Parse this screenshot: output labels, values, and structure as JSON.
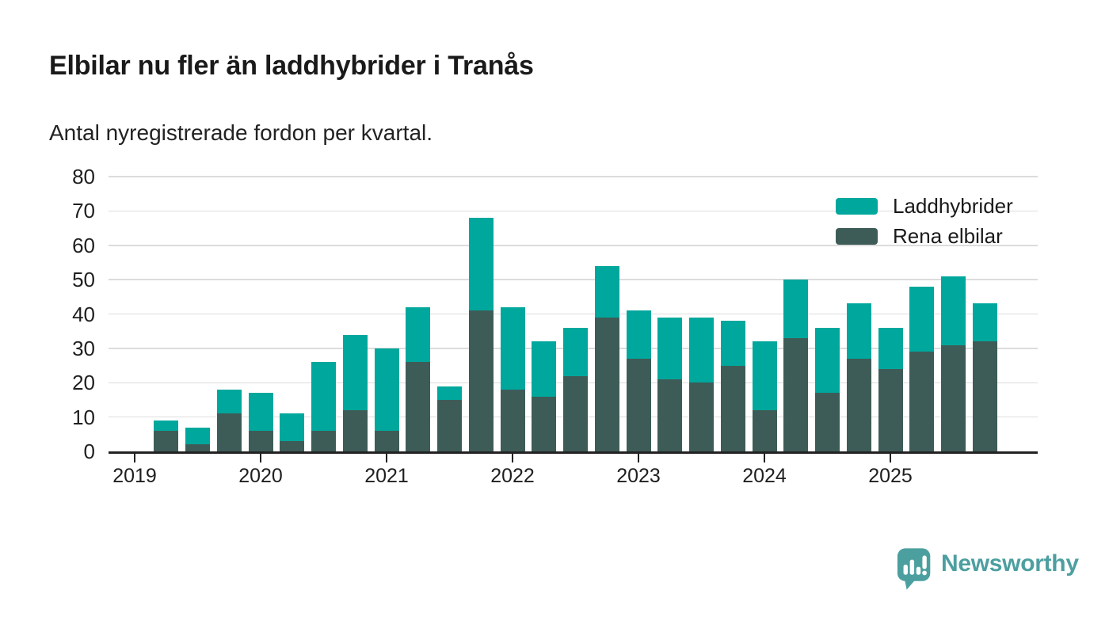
{
  "header": {
    "title": "Elbilar nu fler än laddhybrider i Tranås",
    "subtitle": "Antal nyregistrerade fordon per kvartal."
  },
  "chart_data": {
    "type": "bar",
    "stacked": true,
    "title": "Elbilar nu fler än laddhybrider i Tranås",
    "subtitle": "Antal nyregistrerade fordon per kvartal.",
    "xlabel": "",
    "ylabel": "",
    "ylim": [
      0,
      80
    ],
    "y_ticks": [
      0,
      10,
      20,
      30,
      40,
      50,
      60,
      70,
      80
    ],
    "grid": true,
    "legend_position": "top-right",
    "x_year_labels": [
      "2019",
      "2020",
      "2021",
      "2022",
      "2023",
      "2024",
      "2025"
    ],
    "categories": [
      "2019 Q1",
      "2019 Q2",
      "2019 Q3",
      "2019 Q4",
      "2020 Q1",
      "2020 Q2",
      "2020 Q3",
      "2020 Q4",
      "2021 Q1",
      "2021 Q2",
      "2021 Q3",
      "2021 Q4",
      "2022 Q1",
      "2022 Q2",
      "2022 Q3",
      "2022 Q4",
      "2023 Q1",
      "2023 Q2",
      "2023 Q3",
      "2023 Q4",
      "2024 Q1",
      "2024 Q2",
      "2024 Q3",
      "2024 Q4",
      "2025 Q1",
      "2025 Q2",
      "2025 Q3",
      "2025 Q4"
    ],
    "series": [
      {
        "name": "Laddhybrider",
        "color": "#00a79c",
        "stack_position": "top",
        "values": [
          0,
          3,
          5,
          7,
          11,
          8,
          20,
          22,
          24,
          16,
          4,
          27,
          24,
          16,
          14,
          15,
          14,
          18,
          19,
          13,
          20,
          17,
          19,
          16,
          12,
          19,
          20,
          11
        ]
      },
      {
        "name": "Rena elbilar",
        "color": "#3e5c57",
        "stack_position": "bottom",
        "values": [
          0,
          6,
          2,
          11,
          6,
          3,
          6,
          12,
          6,
          26,
          15,
          41,
          18,
          16,
          22,
          39,
          27,
          21,
          20,
          25,
          12,
          33,
          17,
          27,
          24,
          29,
          31,
          32
        ]
      }
    ],
    "totals": [
      0,
      9,
      7,
      18,
      17,
      11,
      26,
      34,
      30,
      42,
      19,
      68,
      42,
      32,
      36,
      54,
      41,
      39,
      39,
      38,
      32,
      50,
      36,
      43,
      36,
      48,
      51,
      43
    ]
  },
  "branding": {
    "logo_text": "Newsworthy",
    "logo_color": "#4d9fa0",
    "icon_color": "#4ba09f",
    "icon": "bar-chart-speech-bubble-icon"
  }
}
